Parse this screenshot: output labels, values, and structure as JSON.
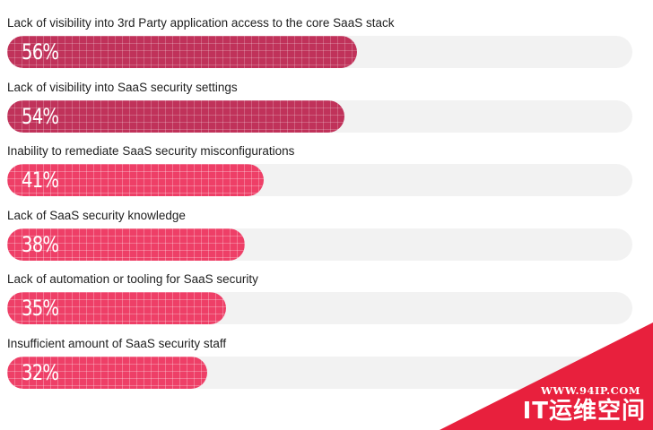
{
  "chart_data": {
    "type": "bar",
    "orientation": "horizontal",
    "categories": [
      "Lack of visibility into 3rd Party application access to the core SaaS stack",
      "Lack of visibility into SaaS security settings",
      "Inability to remediate SaaS security misconfigurations",
      "Lack of SaaS security knowledge",
      "Lack of automation or tooling for SaaS security",
      "Insufficient amount of SaaS security staff"
    ],
    "values": [
      56,
      54,
      41,
      38,
      35,
      32
    ],
    "value_labels": [
      "56%",
      "54%",
      "41%",
      "38%",
      "35%",
      "32%"
    ],
    "xlim": [
      0,
      100
    ],
    "unit": "%",
    "grid": false,
    "legend": "none",
    "colors": {
      "highlight": "#c0325a",
      "normal": "#ee3f67",
      "track": "#f2f2f2"
    },
    "highlight_top": 2
  },
  "watermark": {
    "url": "WWW.94IP.COM",
    "brand": "IT运维空间",
    "color": "#e8203d"
  }
}
